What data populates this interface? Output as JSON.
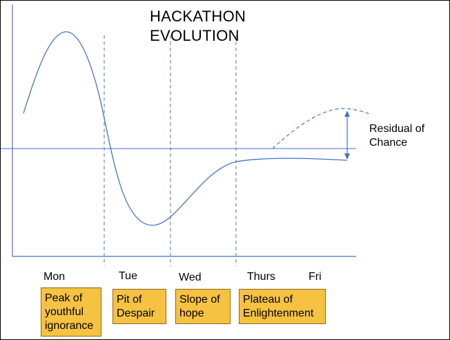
{
  "title": [
    "HACKATHON",
    "EVOLUTION"
  ],
  "days": [
    "Mon",
    "Tue",
    "Wed",
    "Thurs",
    "Fri"
  ],
  "stages": [
    [
      "Peak of",
      "youthful",
      "ignorance"
    ],
    [
      "Pit of",
      "Despair"
    ],
    [
      "Slope of",
      "hope"
    ],
    [
      "Plateau of",
      "Enlightenment"
    ]
  ],
  "residual_label": [
    "Residual of",
    "Chance"
  ],
  "colors": {
    "line": "#4472c4",
    "box_fill": "#f5c242",
    "box_border": "#8a6a1c",
    "axis": "#4472c4"
  }
}
